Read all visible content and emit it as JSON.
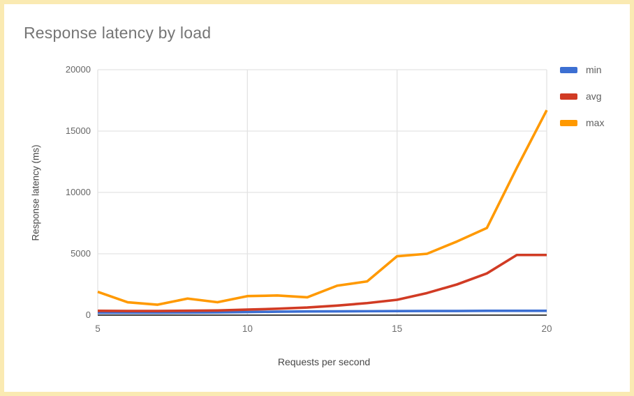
{
  "window": {
    "background_color": "#ffffff",
    "border_color": "#faeab2"
  },
  "chart_data": {
    "type": "line",
    "title": "Response latency by load",
    "xlabel": "Requests per second",
    "ylabel": "Response latency (ms)",
    "xlim": [
      5,
      20
    ],
    "ylim": [
      0,
      20000
    ],
    "x_ticks": [
      5,
      10,
      15,
      20
    ],
    "y_ticks": [
      0,
      5000,
      10000,
      15000,
      20000
    ],
    "grid": true,
    "legend_position": "right",
    "x": [
      5,
      6,
      7,
      8,
      9,
      10,
      11,
      12,
      13,
      14,
      15,
      16,
      17,
      18,
      19,
      20
    ],
    "series": [
      {
        "name": "min",
        "color": "#3c6fd2",
        "values": [
          200,
          200,
          200,
          210,
          220,
          250,
          280,
          300,
          310,
          320,
          330,
          340,
          340,
          350,
          350,
          350
        ]
      },
      {
        "name": "avg",
        "color": "#d13b24",
        "values": [
          350,
          340,
          340,
          360,
          380,
          450,
          520,
          620,
          780,
          980,
          1250,
          1800,
          2500,
          3400,
          4900,
          4900
        ]
      },
      {
        "name": "max",
        "color": "#ff9900",
        "values": [
          1900,
          1050,
          850,
          1350,
          1050,
          1550,
          1600,
          1450,
          2400,
          2750,
          4800,
          5000,
          6000,
          7100,
          12000,
          16700
        ]
      }
    ],
    "style": {
      "gridline_color": "#e3e3e3",
      "axis_line_color": "#424242",
      "title_color": "#757575",
      "tick_label_color": "#666666",
      "axis_title_color": "#474747"
    }
  }
}
